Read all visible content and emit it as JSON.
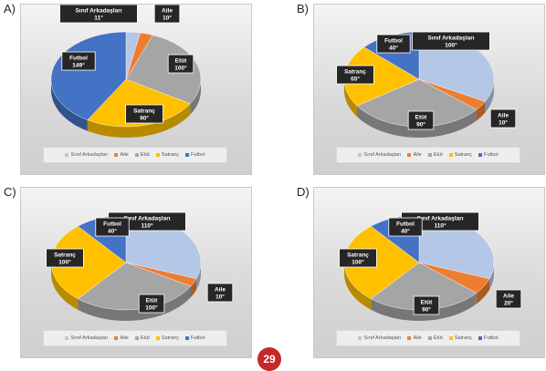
{
  "page_number": "29",
  "colors": {
    "Sınıf Arkadaşları": "#b4c7e7",
    "Aile": "#ed7d31",
    "Etüt": "#a5a5a5",
    "Satranç": "#ffc000",
    "Futbol": "#4472c4"
  },
  "legend_labels": [
    "Sınıf Arkadaşları",
    "Aile",
    "Etüt",
    "Satranç",
    "Futbol"
  ],
  "chart_data": [
    {
      "type": "pie",
      "option": "A)",
      "slices": [
        {
          "name": "Sınıf Arkadaşları",
          "label": "Sınıf Arkadaşları",
          "value": 11,
          "text": "11°"
        },
        {
          "name": "Aile",
          "label": "Aile",
          "value": 10,
          "text": "10°"
        },
        {
          "name": "Etüt",
          "label": "Etüt",
          "value": 100,
          "text": "100°"
        },
        {
          "name": "Satranç",
          "label": "Satranç",
          "value": 90,
          "text": "90°"
        },
        {
          "name": "Futbol",
          "label": "Futbol",
          "value": 149,
          "text": "149°"
        }
      ],
      "legend": [
        "Sınıf Arkadaşları",
        "Aile",
        "Etüt",
        "Satranç",
        "Futbol"
      ]
    },
    {
      "type": "pie",
      "option": "B)",
      "slices": [
        {
          "name": "Sınıf Arkadaşları",
          "label": "Sınıf Arkadaşları",
          "value": 100,
          "text": "100°"
        },
        {
          "name": "Aile",
          "label": "Aile",
          "value": 10,
          "text": "10°"
        },
        {
          "name": "Etüt",
          "label": "Etüt",
          "value": 90,
          "text": "90°"
        },
        {
          "name": "Satranç",
          "label": "Satranç",
          "value": 65,
          "text": "65°"
        },
        {
          "name": "Futbol",
          "label": "Futbol",
          "value": 40,
          "text": "40°"
        }
      ],
      "legend": [
        "Sınıf Arkadaşları",
        "Aile",
        "Etüt",
        "Satranç",
        "Futbol"
      ]
    },
    {
      "type": "pie",
      "option": "C)",
      "slices": [
        {
          "name": "Sınıf Arkadaşları",
          "label": "Sınıf Arkadaşları",
          "value": 110,
          "text": "110°"
        },
        {
          "name": "Aile",
          "label": "Aile",
          "value": 10,
          "text": "10°"
        },
        {
          "name": "Etüt",
          "label": "Etüt",
          "value": 100,
          "text": "100°"
        },
        {
          "name": "Satranç",
          "label": "Satranç",
          "value": 100,
          "text": "100°"
        },
        {
          "name": "Futbol",
          "label": "Futbol",
          "value": 40,
          "text": "40°"
        }
      ],
      "legend": [
        "Sınıf Arkadaşları",
        "Aile",
        "Etüt",
        "Satranç",
        "Futbol"
      ]
    },
    {
      "type": "pie",
      "option": "D)",
      "slices": [
        {
          "name": "Sınıf Arkadaşları",
          "label": "Sınıf Arkadaşları",
          "value": 110,
          "text": "110°"
        },
        {
          "name": "Aile",
          "label": "Aile",
          "value": 20,
          "text": "20°"
        },
        {
          "name": "Etüt",
          "label": "Etüt",
          "value": 90,
          "text": "90°"
        },
        {
          "name": "Satranç",
          "label": "Satranç",
          "value": 100,
          "text": "100°"
        },
        {
          "name": "Futbol",
          "label": "Futbol",
          "value": 40,
          "text": "40°"
        }
      ],
      "legend": [
        "Sınıf Arkadaşları",
        "Aile",
        "Etüt",
        "Satranç",
        "Futbol"
      ]
    }
  ]
}
